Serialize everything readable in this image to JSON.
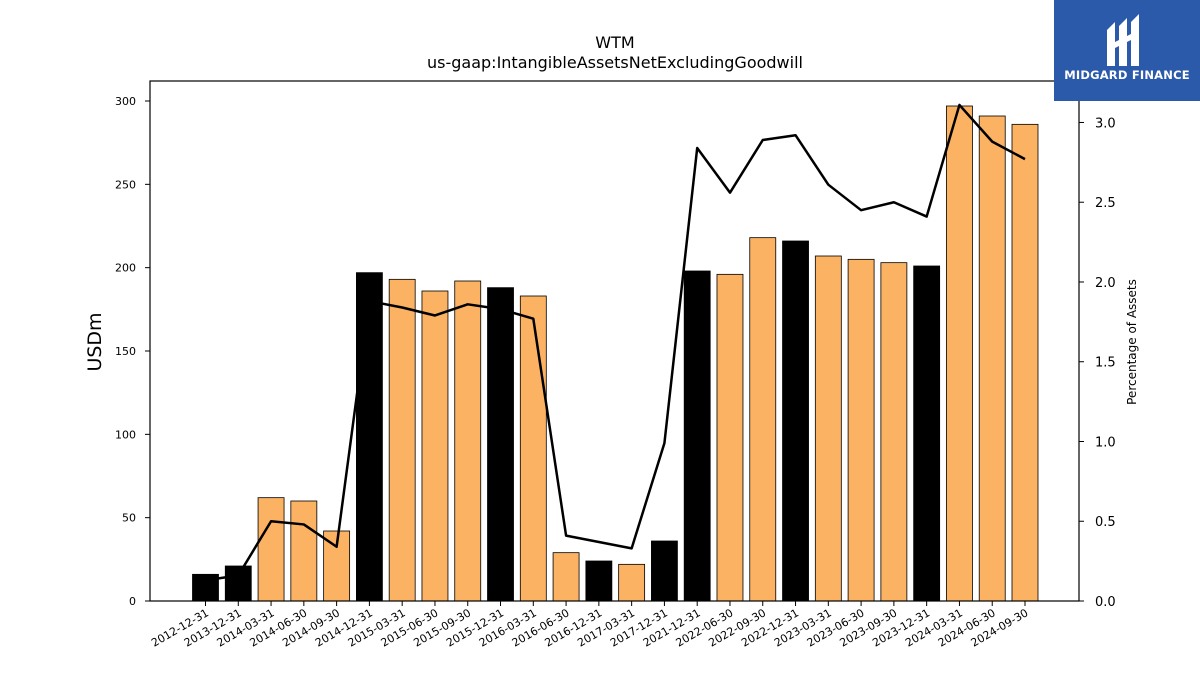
{
  "brand": {
    "name": "MIDGARD FINANCE",
    "color": "#2b5aab"
  },
  "colors": {
    "quarterly_bar": "#fbb262",
    "annual_bar": "#000000",
    "line": "#000000"
  },
  "chart_data": {
    "type": "bar",
    "title": "WTM",
    "subtitle": "us-gaap:IntangibleAssetsNetExcludingGoodwill",
    "ylabel": "USDm",
    "y2label": "Percentage of Assets",
    "ylim": [
      0,
      312
    ],
    "y2lim": [
      0,
      3.26
    ],
    "yticks": [
      0,
      50,
      100,
      150,
      200,
      250,
      300
    ],
    "y2ticks": [
      "0.0",
      "0.5",
      "1.0",
      "1.5",
      "2.0",
      "2.5",
      "3.0"
    ],
    "categories": [
      "2012-12-31",
      "2013-12-31",
      "2014-03-31",
      "2014-06-30",
      "2014-09-30",
      "2014-12-31",
      "2015-03-31",
      "2015-06-30",
      "2015-09-30",
      "2015-12-31",
      "2016-03-31",
      "2016-06-30",
      "2016-12-31",
      "2017-03-31",
      "2017-12-31",
      "2021-12-31",
      "2022-06-30",
      "2022-09-30",
      "2022-12-31",
      "2023-03-31",
      "2023-06-30",
      "2023-09-30",
      "2023-12-31",
      "2024-03-31",
      "2024-06-30",
      "2024-09-30"
    ],
    "annual": [
      true,
      true,
      false,
      false,
      false,
      true,
      false,
      false,
      false,
      true,
      false,
      false,
      true,
      false,
      true,
      true,
      false,
      false,
      true,
      false,
      false,
      false,
      true,
      false,
      false,
      false
    ],
    "series": [
      {
        "values": [
          16,
          21,
          62,
          60,
          42,
          197,
          193,
          186,
          192,
          188,
          183,
          29,
          24,
          22,
          36,
          198,
          196,
          218,
          216,
          207,
          205,
          203,
          201,
          297,
          291,
          286
        ]
      },
      {
        "axis": "right",
        "values": [
          0.13,
          0.16,
          0.5,
          0.48,
          0.34,
          1.88,
          1.84,
          1.79,
          1.86,
          1.83,
          1.77,
          0.41,
          0.37,
          0.33,
          0.99,
          2.84,
          2.56,
          2.89,
          2.92,
          2.61,
          2.45,
          2.5,
          2.41,
          3.11,
          2.88,
          2.77
        ]
      }
    ]
  }
}
